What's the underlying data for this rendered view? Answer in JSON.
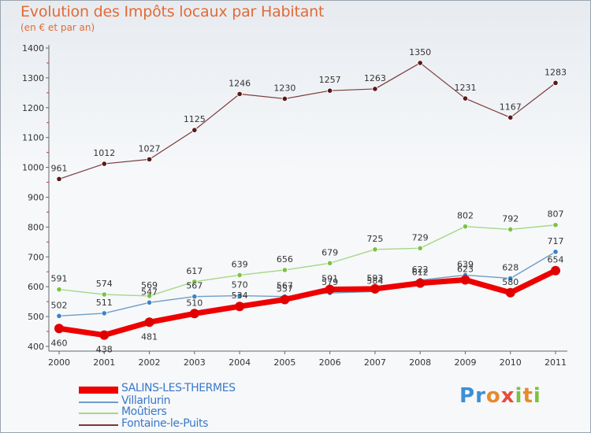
{
  "header": {
    "title": "Evolution des Impôts locaux par Habitant",
    "subtitle": "(en € et par an)"
  },
  "logo": {
    "text": "Proxiti"
  },
  "chart_data": {
    "type": "line",
    "title": "Evolution des Impôts locaux par Habitant",
    "subtitle": "(en € et par an)",
    "xlabel": "",
    "ylabel": "",
    "x": [
      "2000",
      "2001",
      "2002",
      "2003",
      "2004",
      "2005",
      "2006",
      "2007",
      "2008",
      "2009",
      "2010",
      "2011"
    ],
    "ylim": [
      400,
      1400
    ],
    "yticks": [
      400,
      500,
      600,
      700,
      800,
      900,
      1000,
      1100,
      1200,
      1300,
      1400
    ],
    "grid": false,
    "legend": "bottom-left",
    "series": [
      {
        "name": "SALINS-LES-THERMES",
        "color": "#ee0000",
        "point_color": "#e10000",
        "values": [
          460,
          438,
          481,
          510,
          534,
          557,
          591,
          593,
          612,
          623,
          580,
          654
        ],
        "labels": [
          "460",
          "438",
          "481",
          "510",
          "534",
          "557",
          "591",
          "593",
          "612",
          "623",
          "580",
          "654"
        ]
      },
      {
        "name": "Villarlurin",
        "color": "#6f9cc6",
        "point_color": "#3b82c4",
        "values": [
          502,
          511,
          547,
          567,
          570,
          567,
          579,
          584,
          622,
          639,
          628,
          717
        ],
        "labels": [
          "502",
          "511",
          "547",
          "567",
          "570",
          "567",
          "579",
          "584",
          "622",
          "639",
          "628",
          "717"
        ]
      },
      {
        "name": "Moûtiers",
        "color": "#a6d785",
        "point_color": "#7cc242",
        "values": [
          591,
          574,
          569,
          617,
          639,
          656,
          679,
          725,
          729,
          802,
          792,
          807
        ],
        "labels": [
          "591",
          "574",
          "569",
          "617",
          "639",
          "656",
          "679",
          "725",
          "729",
          "802",
          "792",
          "807"
        ]
      },
      {
        "name": "Fontaine-le-Puits",
        "color": "#7a3a3a",
        "point_color": "#5c1717",
        "values": [
          961,
          1012,
          1027,
          1125,
          1246,
          1230,
          1257,
          1263,
          1350,
          1231,
          1167,
          1283
        ],
        "labels": [
          "961",
          "1012",
          "1027",
          "1125",
          "1246",
          "1230",
          "1257",
          "1263",
          "1350",
          "1231",
          "1167",
          "1283"
        ]
      }
    ]
  }
}
